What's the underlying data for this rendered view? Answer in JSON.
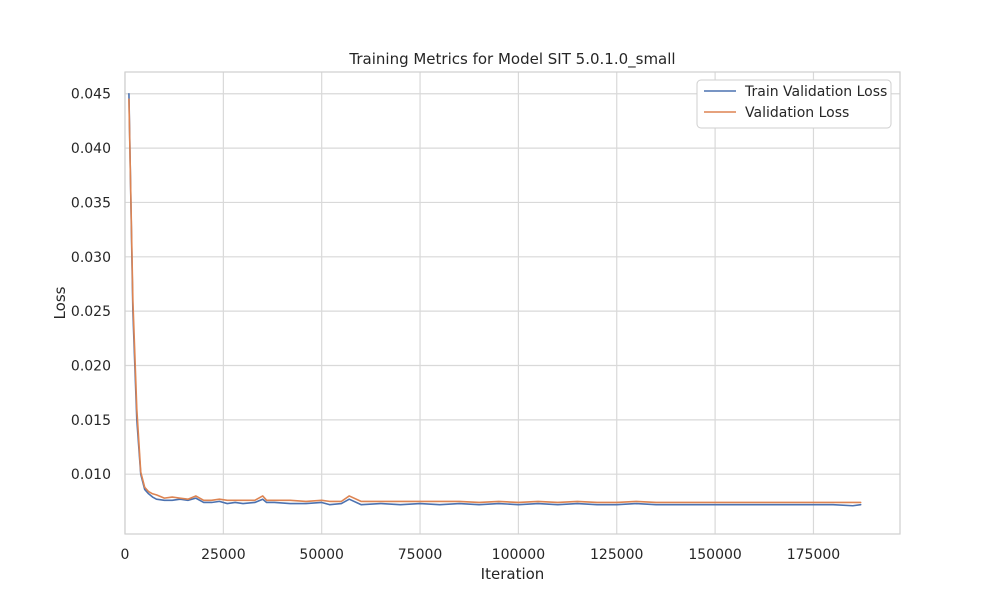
{
  "chart_data": {
    "type": "line",
    "title": "Training Metrics for Model SIT 5.0.1.0_small",
    "xlabel": "Iteration",
    "ylabel": "Loss",
    "xlim": [
      0,
      197000
    ],
    "ylim": [
      0.0045,
      0.047
    ],
    "xticks": [
      0,
      25000,
      50000,
      75000,
      100000,
      125000,
      150000,
      175000
    ],
    "yticks": [
      0.01,
      0.015,
      0.02,
      0.025,
      0.03,
      0.035,
      0.04,
      0.045
    ],
    "grid": true,
    "legend_position": "top-right",
    "series": [
      {
        "name": "Train Validation Loss",
        "color": "#4C72B0",
        "x": [
          1000,
          2000,
          3000,
          4000,
          5000,
          6000,
          7000,
          8000,
          10000,
          12000,
          14000,
          16000,
          18000,
          20000,
          22000,
          24000,
          26000,
          28000,
          30000,
          33000,
          35000,
          36000,
          38000,
          42000,
          46000,
          50000,
          52000,
          55000,
          57000,
          60000,
          65000,
          70000,
          75000,
          80000,
          85000,
          90000,
          95000,
          100000,
          105000,
          110000,
          115000,
          120000,
          125000,
          130000,
          135000,
          140000,
          145000,
          150000,
          155000,
          160000,
          165000,
          170000,
          175000,
          180000,
          185000,
          187000
        ],
        "y": [
          0.045,
          0.025,
          0.015,
          0.01,
          0.0086,
          0.0082,
          0.0079,
          0.0077,
          0.0076,
          0.0076,
          0.0077,
          0.0076,
          0.0078,
          0.0074,
          0.0074,
          0.0075,
          0.0073,
          0.0074,
          0.0073,
          0.0074,
          0.0077,
          0.0074,
          0.0074,
          0.0073,
          0.0073,
          0.0074,
          0.0072,
          0.0073,
          0.0077,
          0.0072,
          0.0073,
          0.0072,
          0.0073,
          0.0072,
          0.0073,
          0.0072,
          0.0073,
          0.0072,
          0.0073,
          0.0072,
          0.0073,
          0.0072,
          0.0072,
          0.0073,
          0.0072,
          0.0072,
          0.0072,
          0.0072,
          0.0072,
          0.0072,
          0.0072,
          0.0072,
          0.0072,
          0.0072,
          0.0071,
          0.0072
        ]
      },
      {
        "name": "Validation Loss",
        "color": "#DD8452",
        "x": [
          1000,
          2000,
          3000,
          4000,
          5000,
          6000,
          7000,
          8000,
          10000,
          12000,
          14000,
          16000,
          18000,
          20000,
          22000,
          24000,
          26000,
          28000,
          30000,
          33000,
          35000,
          36000,
          38000,
          42000,
          46000,
          50000,
          52000,
          55000,
          57000,
          60000,
          65000,
          70000,
          75000,
          80000,
          85000,
          90000,
          95000,
          100000,
          105000,
          110000,
          115000,
          120000,
          125000,
          130000,
          135000,
          140000,
          145000,
          150000,
          155000,
          160000,
          165000,
          170000,
          175000,
          180000,
          185000,
          187000
        ],
        "y": [
          0.0445,
          0.026,
          0.016,
          0.0102,
          0.0088,
          0.0084,
          0.0082,
          0.0081,
          0.0078,
          0.0079,
          0.0078,
          0.0077,
          0.008,
          0.0076,
          0.0076,
          0.0077,
          0.0076,
          0.0076,
          0.0076,
          0.0076,
          0.008,
          0.0076,
          0.0076,
          0.0076,
          0.0075,
          0.0076,
          0.0075,
          0.0075,
          0.008,
          0.0075,
          0.0075,
          0.0075,
          0.0075,
          0.0075,
          0.0075,
          0.0074,
          0.0075,
          0.0074,
          0.0075,
          0.0074,
          0.0075,
          0.0074,
          0.0074,
          0.0075,
          0.0074,
          0.0074,
          0.0074,
          0.0074,
          0.0074,
          0.0074,
          0.0074,
          0.0074,
          0.0074,
          0.0074,
          0.0074,
          0.0074
        ]
      }
    ]
  }
}
